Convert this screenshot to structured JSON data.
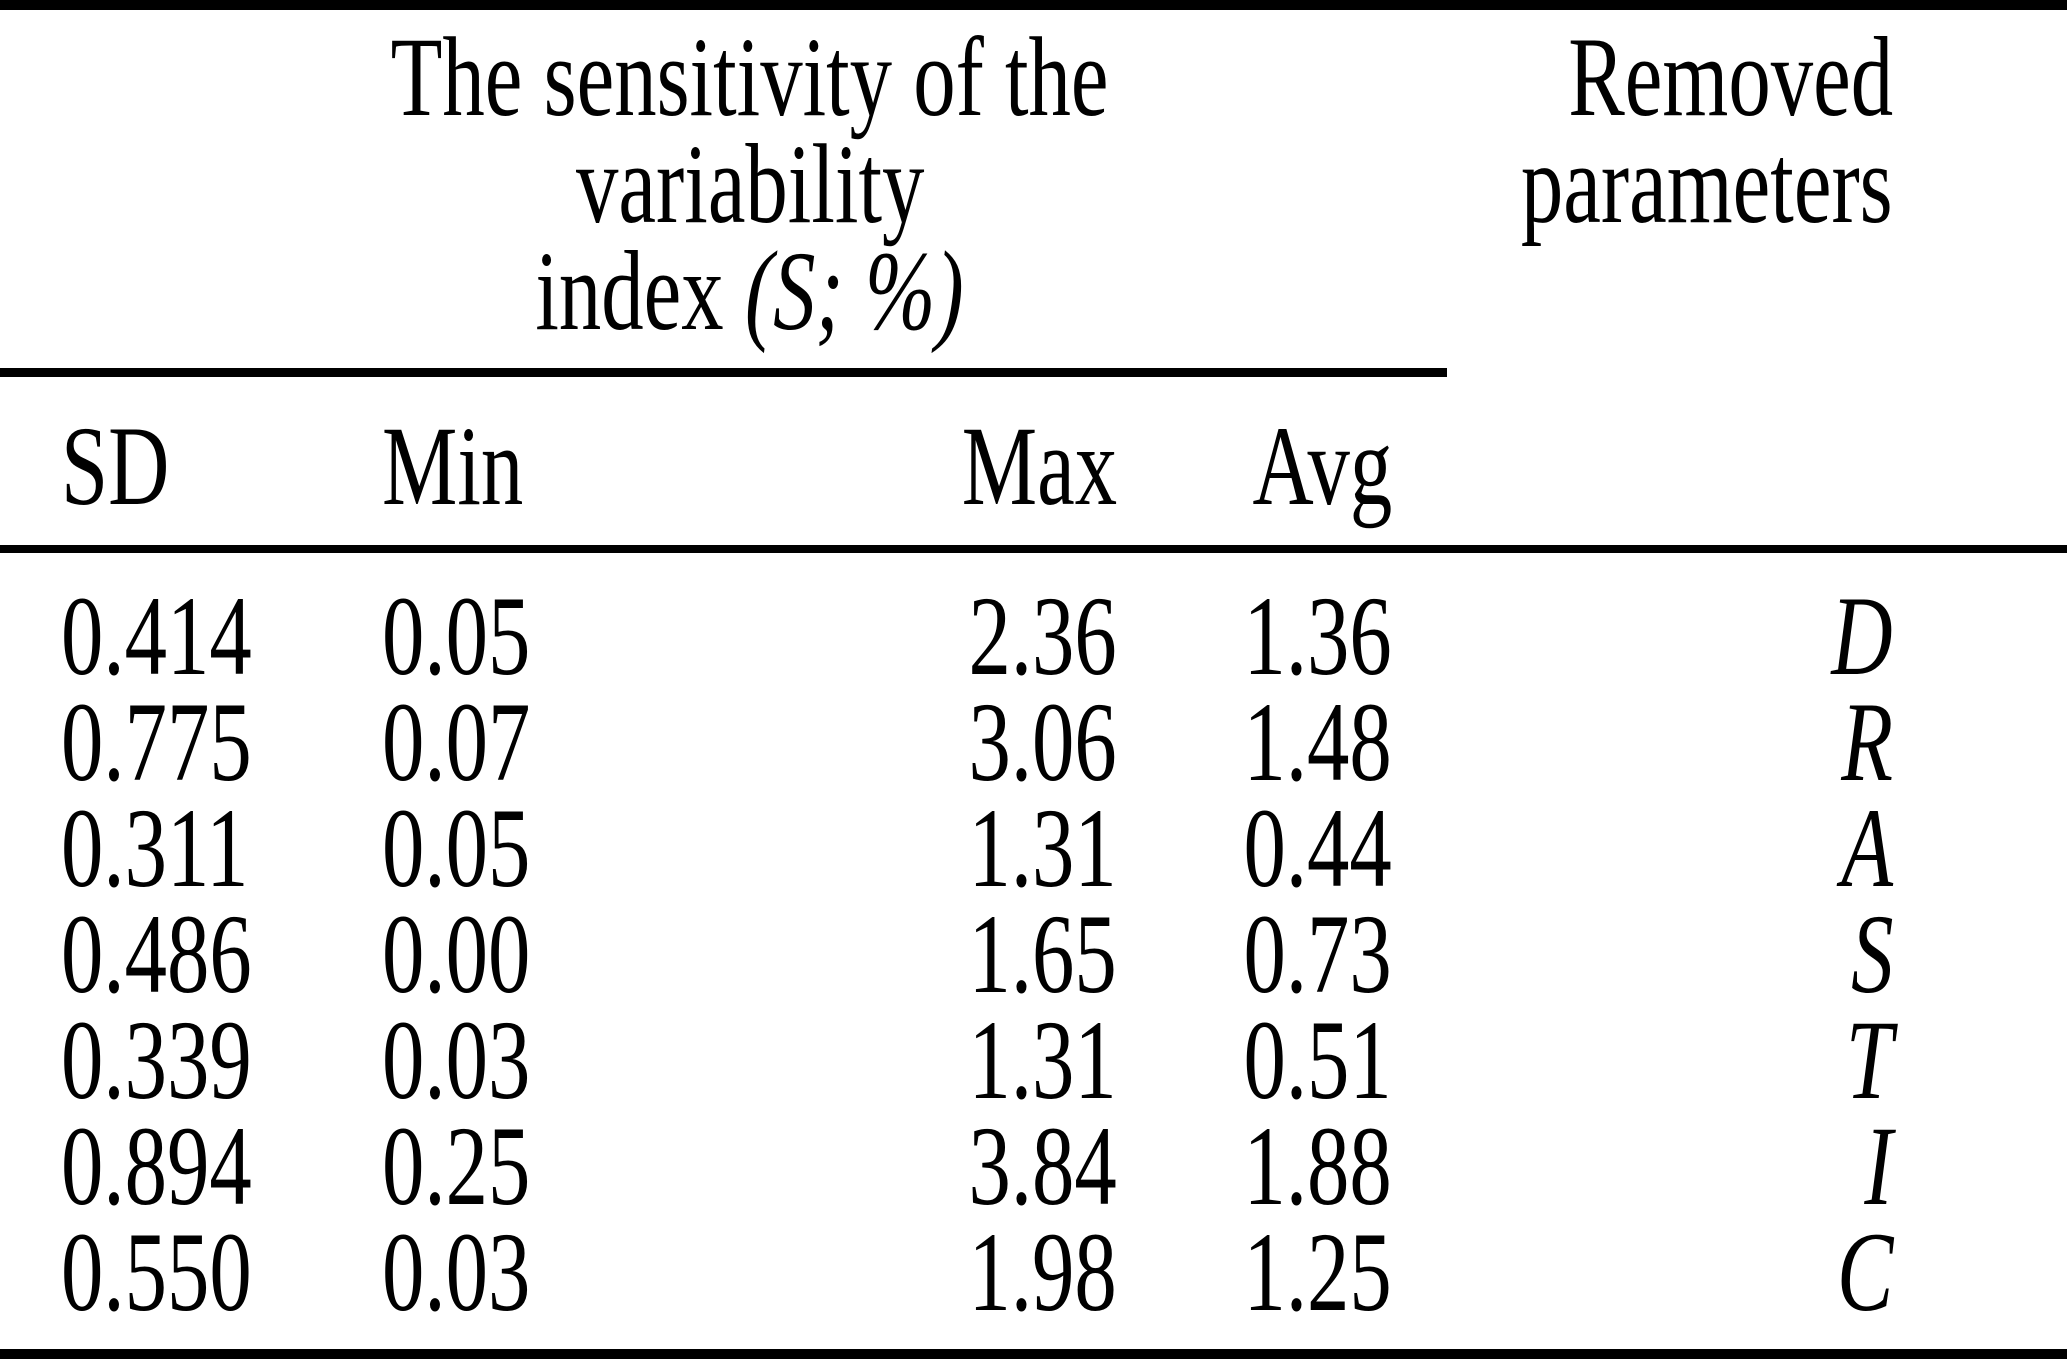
{
  "table": {
    "group_header": {
      "line1": "The sensitivity of the",
      "line2": "variability",
      "line3_prefix": "index ",
      "line3_italic": "(S",
      "line3_suffix_italic": "; %)"
    },
    "removed_header": {
      "line1": "Removed",
      "line2": "parameters"
    },
    "column_headers": {
      "sd": "SD",
      "min": "Min",
      "max": "Max",
      "avg": "Avg"
    },
    "rows": [
      {
        "sd": "0.414",
        "min": "0.05",
        "max": "2.36",
        "avg": "1.36",
        "param": "D"
      },
      {
        "sd": "0.775",
        "min": "0.07",
        "max": "3.06",
        "avg": "1.48",
        "param": "R"
      },
      {
        "sd": "0.311",
        "min": "0.05",
        "max": "1.31",
        "avg": "0.44",
        "param": "A"
      },
      {
        "sd": "0.486",
        "min": "0.00",
        "max": "1.65",
        "avg": "0.73",
        "param": "S"
      },
      {
        "sd": "0.339",
        "min": "0.03",
        "max": "1.31",
        "avg": "0.51",
        "param": "T"
      },
      {
        "sd": "0.894",
        "min": "0.25",
        "max": "3.84",
        "avg": "1.88",
        "param": "I"
      },
      {
        "sd": "0.550",
        "min": "0.03",
        "max": "1.98",
        "avg": "1.25",
        "param": "C"
      }
    ]
  },
  "colors": {
    "text": "#000000",
    "background": "#ffffff",
    "rule": "#000000"
  },
  "chart_data": {
    "type": "table",
    "title": "The sensitivity of the variability index (S; %)",
    "columns": [
      "SD",
      "Min",
      "Max",
      "Avg",
      "Removed parameters"
    ],
    "rows": [
      [
        0.414,
        0.05,
        2.36,
        1.36,
        "D"
      ],
      [
        0.775,
        0.07,
        3.06,
        1.48,
        "R"
      ],
      [
        0.311,
        0.05,
        1.31,
        0.44,
        "A"
      ],
      [
        0.486,
        0.0,
        1.65,
        0.73,
        "S"
      ],
      [
        0.339,
        0.03,
        1.31,
        0.51,
        "T"
      ],
      [
        0.894,
        0.25,
        3.84,
        1.88,
        "I"
      ],
      [
        0.55,
        0.03,
        1.98,
        1.25,
        "C"
      ]
    ]
  }
}
